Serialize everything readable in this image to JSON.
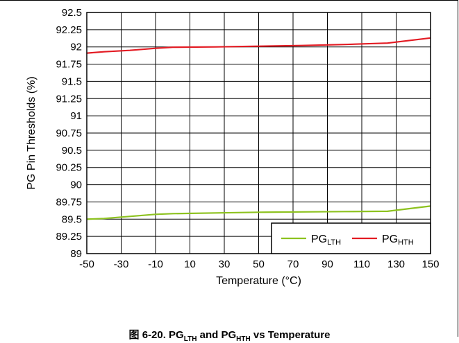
{
  "chart_data": {
    "type": "line",
    "xlabel": "Temperature (°C)",
    "ylabel": "PG Pin Thresholds (%)",
    "xlim": [
      -50,
      150
    ],
    "ylim": [
      89,
      92.5
    ],
    "xticks": [
      "-50",
      "-30",
      "-10",
      "10",
      "30",
      "50",
      "70",
      "90",
      "110",
      "130",
      "150"
    ],
    "yticks": [
      "92.5",
      "92.25",
      "92",
      "91.75",
      "91.5",
      "91.25",
      "91",
      "90.75",
      "90.5",
      "90.25",
      "90",
      "89.75",
      "89.5",
      "89.25",
      "89"
    ],
    "grid": true,
    "legend_position": "bottom-right",
    "series": [
      {
        "name_main": "PG",
        "name_sub": "LTH",
        "color": "#8DC21F",
        "x": [
          -50,
          -40,
          -25,
          -10,
          0,
          25,
          50,
          75,
          100,
          125,
          150
        ],
        "y": [
          89.5,
          89.51,
          89.54,
          89.57,
          89.58,
          89.59,
          89.6,
          89.605,
          89.61,
          89.615,
          89.69
        ]
      },
      {
        "name_main": "PG",
        "name_sub": "HTH",
        "color": "#E31B23",
        "x": [
          -50,
          -40,
          -25,
          -10,
          0,
          25,
          50,
          75,
          100,
          125,
          150
        ],
        "y": [
          91.91,
          91.93,
          91.95,
          91.98,
          91.995,
          92.0,
          92.01,
          92.02,
          92.035,
          92.055,
          92.13
        ]
      }
    ]
  },
  "caption": {
    "prefix": "图 6-20. PG",
    "sub1": "LTH",
    "mid": " and PG",
    "sub2": "HTH",
    "suffix": " vs Temperature"
  }
}
